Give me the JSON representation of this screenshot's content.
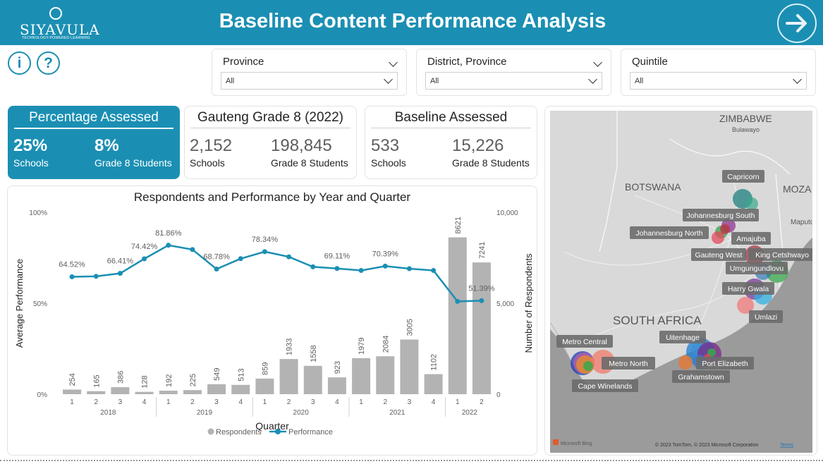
{
  "header": {
    "logo_text": "SIYAVULA",
    "logo_tagline": "TECHNOLOGY-POWERED LEARNING",
    "title": "Baseline Content Performance Analysis"
  },
  "filters": [
    {
      "label": "Province",
      "value": "All"
    },
    {
      "label": "District, Province",
      "value": "All"
    },
    {
      "label": "Quintile",
      "value": "All"
    }
  ],
  "cards": {
    "assessed": {
      "title": "Percentage Assessed",
      "schools_value": "25%",
      "schools_label": "Schools",
      "students_value": "8%",
      "students_label": "Grade 8 Students"
    },
    "gauteng": {
      "title": "Gauteng Grade 8 (2022)",
      "schools_value": "2,152",
      "schools_label": "Schools",
      "students_value": "198,845",
      "students_label": "Grade 8 Students"
    },
    "baseline": {
      "title": "Baseline Assessed",
      "schools_value": "533",
      "schools_label": "Schools",
      "students_value": "15,226",
      "students_label": "Grade 8 Students"
    }
  },
  "chart_data": {
    "type": "bar",
    "title": "Respondents and Performance by Year and Quarter",
    "xlabel": "Quarter",
    "ylabel": "Average Performance",
    "y2label": "Number of Respondents",
    "y_ticks": [
      "100%",
      "50%",
      "0%"
    ],
    "y2_ticks": [
      "10,000",
      "5,000",
      "0"
    ],
    "ylim": [
      0,
      100
    ],
    "y2lim": [
      0,
      10000
    ],
    "quarters": [
      "1",
      "2",
      "3",
      "4",
      "1",
      "2",
      "3",
      "4",
      "1",
      "2",
      "3",
      "4",
      "1",
      "2",
      "3",
      "4",
      "1",
      "2"
    ],
    "years": [
      {
        "label": "2018",
        "count": 4
      },
      {
        "label": "2019",
        "count": 4
      },
      {
        "label": "2020",
        "count": 4
      },
      {
        "label": "2021",
        "count": 4
      },
      {
        "label": "2022",
        "count": 2
      }
    ],
    "series": [
      {
        "name": "Respondents",
        "color": "#b3b3b3",
        "values": [
          254,
          165,
          386,
          128,
          192,
          225,
          549,
          513,
          859,
          1933,
          1558,
          923,
          1979,
          2084,
          3005,
          1102,
          8621,
          7241
        ],
        "labels": [
          "254",
          "165",
          "386",
          "128",
          "192",
          "225",
          "549",
          "513",
          "859",
          "1933",
          "1558",
          "923",
          "1979",
          "2084",
          "3005",
          "1102",
          "8621",
          "7241"
        ]
      },
      {
        "name": "Performance",
        "color": "#1b8fb3",
        "values": [
          64.52,
          64.8,
          66.41,
          74.42,
          81.86,
          79.5,
          68.78,
          74.5,
          78.34,
          75.5,
          70.0,
          69.11,
          68.0,
          70.39,
          69.0,
          68.0,
          51.0,
          51.39
        ],
        "labels": [
          "64.52%",
          "",
          "66.41%",
          "74.42%",
          "81.86%",
          "",
          "68.78%",
          "",
          "78.34%",
          "",
          "",
          "69.11%",
          "",
          "70.39%",
          "",
          "",
          "",
          "51.39%"
        ]
      }
    ],
    "legend_position": "bottom"
  },
  "map": {
    "country_labels": [
      "ZIMBABWE",
      "BOTSWANA",
      "SOUTH AFRICA",
      "MOZA"
    ],
    "place_labels": [
      "Bulawayo",
      "Maputo"
    ],
    "district_labels": [
      "Capricorn",
      "Johannesburg South",
      "Johannesburg North",
      "Amajuba",
      "Gauteng West",
      "King Cetshwayo",
      "Umgungundlovu",
      "Harry Gwala",
      "Umlazi",
      "Uitenhage",
      "Metro Central",
      "Metro North",
      "Port Elizabeth",
      "Grahamstown",
      "Cape Winelands"
    ],
    "attribution": "© 2023 TomTom, © 2023 Microsoft Corporation",
    "terms": "Terms",
    "provider": "Microsoft Bing"
  }
}
